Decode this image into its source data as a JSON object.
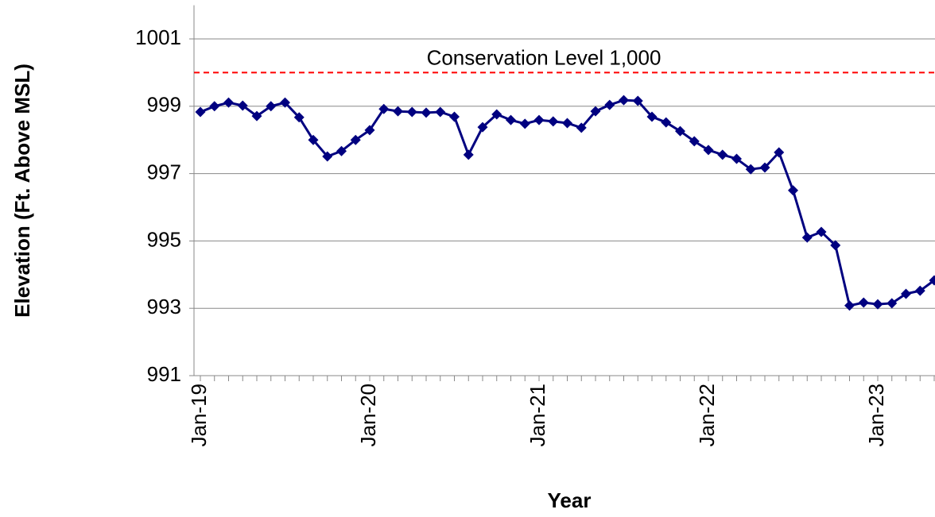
{
  "chart_data": {
    "type": "line",
    "y_label": "Elevation (Ft. Above MSL)",
    "x_label": "Year",
    "categories": [
      "Jan-19",
      null,
      null,
      null,
      null,
      null,
      null,
      null,
      null,
      null,
      null,
      null,
      "Jan-20",
      null,
      null,
      null,
      null,
      null,
      null,
      null,
      null,
      null,
      null,
      null,
      "Jan-21",
      null,
      null,
      null,
      null,
      null,
      null,
      null,
      null,
      null,
      null,
      null,
      "Jan-22",
      null,
      null,
      null,
      null,
      null,
      null,
      null,
      null,
      null,
      null,
      null,
      "Jan-23",
      null,
      null,
      null,
      null
    ],
    "series": [
      {
        "color": "#000080",
        "values": [
          998.83,
          999.0,
          999.11,
          999.02,
          998.71,
          999.0,
          999.11,
          998.67,
          998.0,
          997.51,
          997.67,
          998.0,
          998.29,
          998.92,
          998.85,
          998.83,
          998.81,
          998.83,
          998.69,
          997.56,
          998.38,
          998.76,
          998.59,
          998.48,
          998.59,
          998.55,
          998.5,
          998.36,
          998.85,
          999.04,
          999.18,
          999.16,
          998.69,
          998.52,
          998.26,
          997.96,
          997.7,
          997.56,
          997.44,
          997.13,
          997.18,
          997.63,
          996.5,
          995.1,
          995.27,
          994.87,
          993.08,
          993.17,
          993.12,
          993.15,
          993.43,
          993.52,
          993.83
        ]
      }
    ],
    "reference_line": {
      "value": 1000,
      "label": "Conservation Level 1,000",
      "color": "#ff0000"
    },
    "ylim": [
      991,
      1002
    ],
    "yticks": [
      991,
      993,
      995,
      997,
      999,
      1001
    ],
    "grid": true
  }
}
